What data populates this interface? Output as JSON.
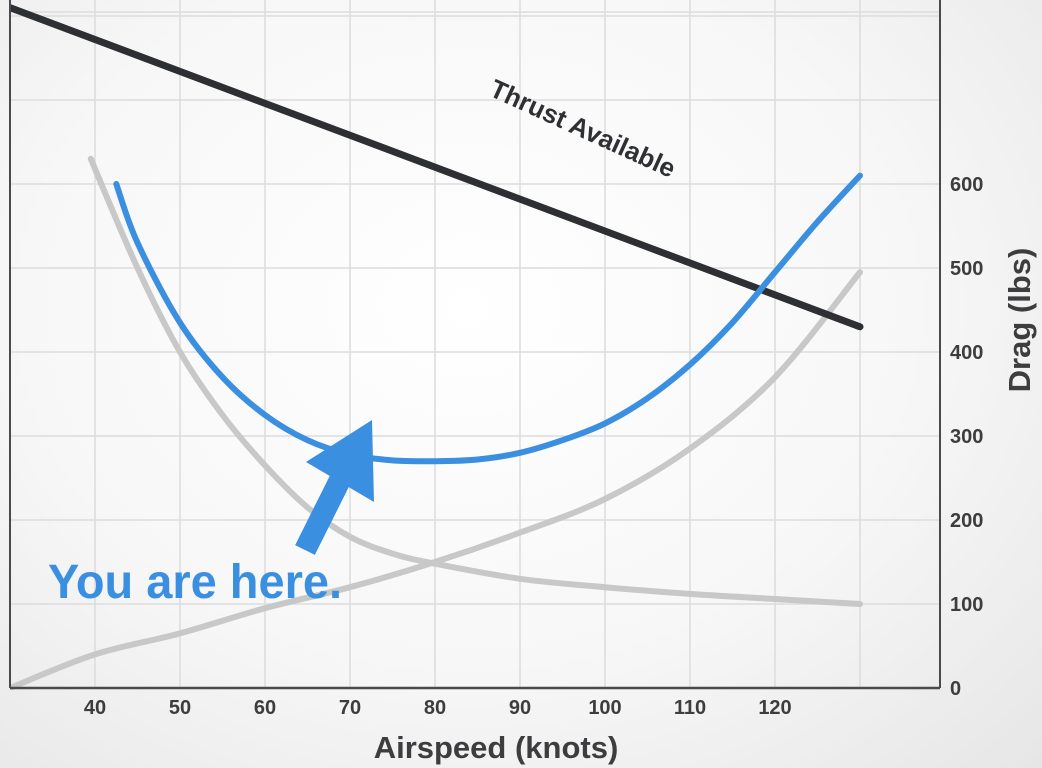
{
  "chart_data": {
    "type": "line",
    "xlabel": "Airspeed (knots)",
    "ylabel": "Drag (lbs)",
    "xlim": [
      30,
      130
    ],
    "ylim": [
      0,
      760
    ],
    "x_ticks": [
      40,
      50,
      60,
      70,
      80,
      90,
      100,
      110,
      120
    ],
    "y_ticks": [
      0,
      100,
      200,
      300,
      400,
      500,
      600
    ],
    "grid": true,
    "y_axis_side": "right",
    "series": [
      {
        "name": "Thrust Available",
        "color": "#2e2f33",
        "x": [
          30,
          130
        ],
        "y": [
          810,
          430
        ]
      },
      {
        "name": "",
        "color": "#c8c8c8",
        "x": [
          30,
          40,
          50,
          60,
          70,
          80,
          90,
          100,
          110,
          120,
          130
        ],
        "y": [
          0,
          40,
          65,
          95,
          120,
          150,
          185,
          225,
          285,
          370,
          495
        ]
      },
      {
        "name": "",
        "color": "#c8c8c8",
        "x": [
          39.5,
          45,
          50,
          55,
          60,
          65,
          70,
          75,
          80,
          90,
          100,
          110,
          120,
          130
        ],
        "y": [
          630,
          500,
          400,
          325,
          265,
          215,
          180,
          160,
          148,
          130,
          120,
          112,
          106,
          100
        ]
      },
      {
        "name": "",
        "color": "#3a8fe0",
        "x": [
          42.5,
          45,
          50,
          55,
          60,
          65,
          70,
          75,
          80,
          85,
          90,
          95,
          100,
          105,
          110,
          115,
          120,
          125,
          130
        ],
        "y": [
          600,
          530,
          435,
          370,
          325,
          295,
          278,
          271,
          270,
          272,
          280,
          295,
          315,
          345,
          385,
          435,
          495,
          555,
          610
        ]
      }
    ],
    "annotations": [
      {
        "text": "Thrust Available",
        "series": 0
      },
      {
        "text": "You are here.",
        "points_to": {
          "x": 63,
          "y": 320
        }
      }
    ]
  }
}
